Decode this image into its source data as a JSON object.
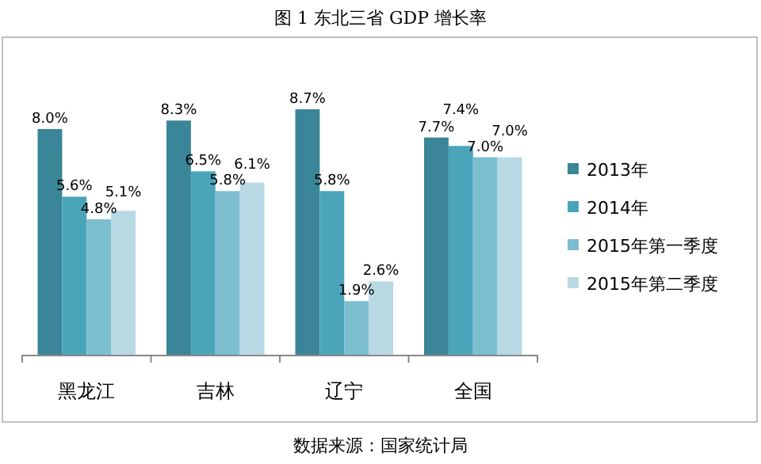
{
  "chart_data": {
    "type": "bar",
    "title": "图 1 东北三省 GDP 增长率",
    "categories": [
      "黑龙江",
      "吉林",
      "辽宁",
      "全国"
    ],
    "series": [
      {
        "name": "2013年",
        "color": "#3a8598",
        "values": [
          8.0,
          8.3,
          8.7,
          7.7
        ],
        "value_labels": [
          "8.0%",
          "8.3%",
          "8.7%",
          "7.7%"
        ]
      },
      {
        "name": "2014年",
        "color": "#4aa5bb",
        "values": [
          5.6,
          6.5,
          5.8,
          7.4
        ],
        "value_labels": [
          "5.6%",
          "6.5%",
          "5.8%",
          "7.4%"
        ]
      },
      {
        "name": "2015年第一季度",
        "color": "#7dbdd0",
        "values": [
          4.8,
          5.8,
          1.9,
          7.0
        ],
        "value_labels": [
          "4.8%",
          "5.8%",
          "1.9%",
          "7.0%"
        ]
      },
      {
        "name": "2015年第二季度",
        "color": "#b8d9e3",
        "values": [
          5.1,
          6.1,
          2.6,
          7.0
        ],
        "value_labels": [
          "5.1%",
          "6.1%",
          "2.6%",
          "7.0%"
        ]
      }
    ],
    "legend": "right",
    "annotations": [
      "数据来源：国家统计局"
    ]
  }
}
